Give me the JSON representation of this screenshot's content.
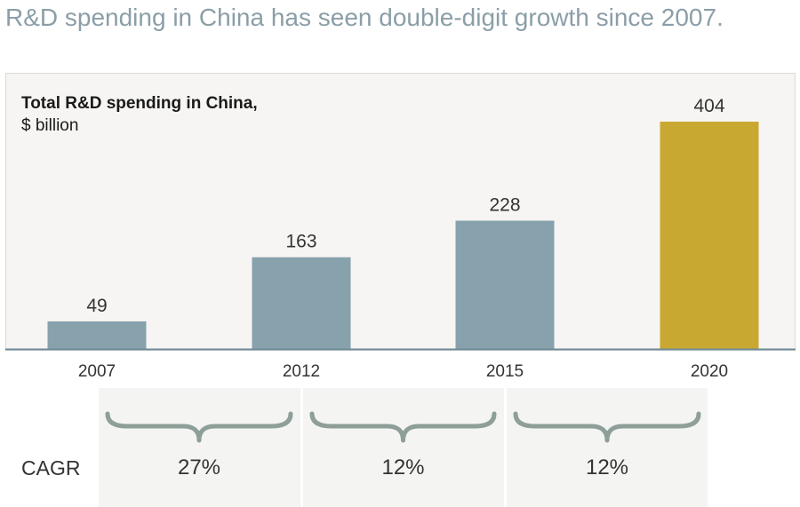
{
  "headline": "R&D spending in China has seen double-digit growth since 2007.",
  "chart_data": {
    "type": "bar",
    "title": "Total R&D spending in China,",
    "unit": "$ billion",
    "categories": [
      "2007",
      "2012",
      "2015",
      "2020"
    ],
    "values": [
      49,
      163,
      228,
      404
    ],
    "ylim": [
      0,
      404
    ],
    "colors": [
      "#87a1ad",
      "#87a1ad",
      "#87a1ad",
      "#c9a832"
    ],
    "grid": false,
    "cagr": {
      "label": "CAGR",
      "values": [
        "27%",
        "12%",
        "12%"
      ]
    }
  },
  "colors": {
    "bar": "#87a1ad",
    "highlight": "#c9a832",
    "axis": "#6f8a97",
    "brace": "#8e9e98"
  }
}
